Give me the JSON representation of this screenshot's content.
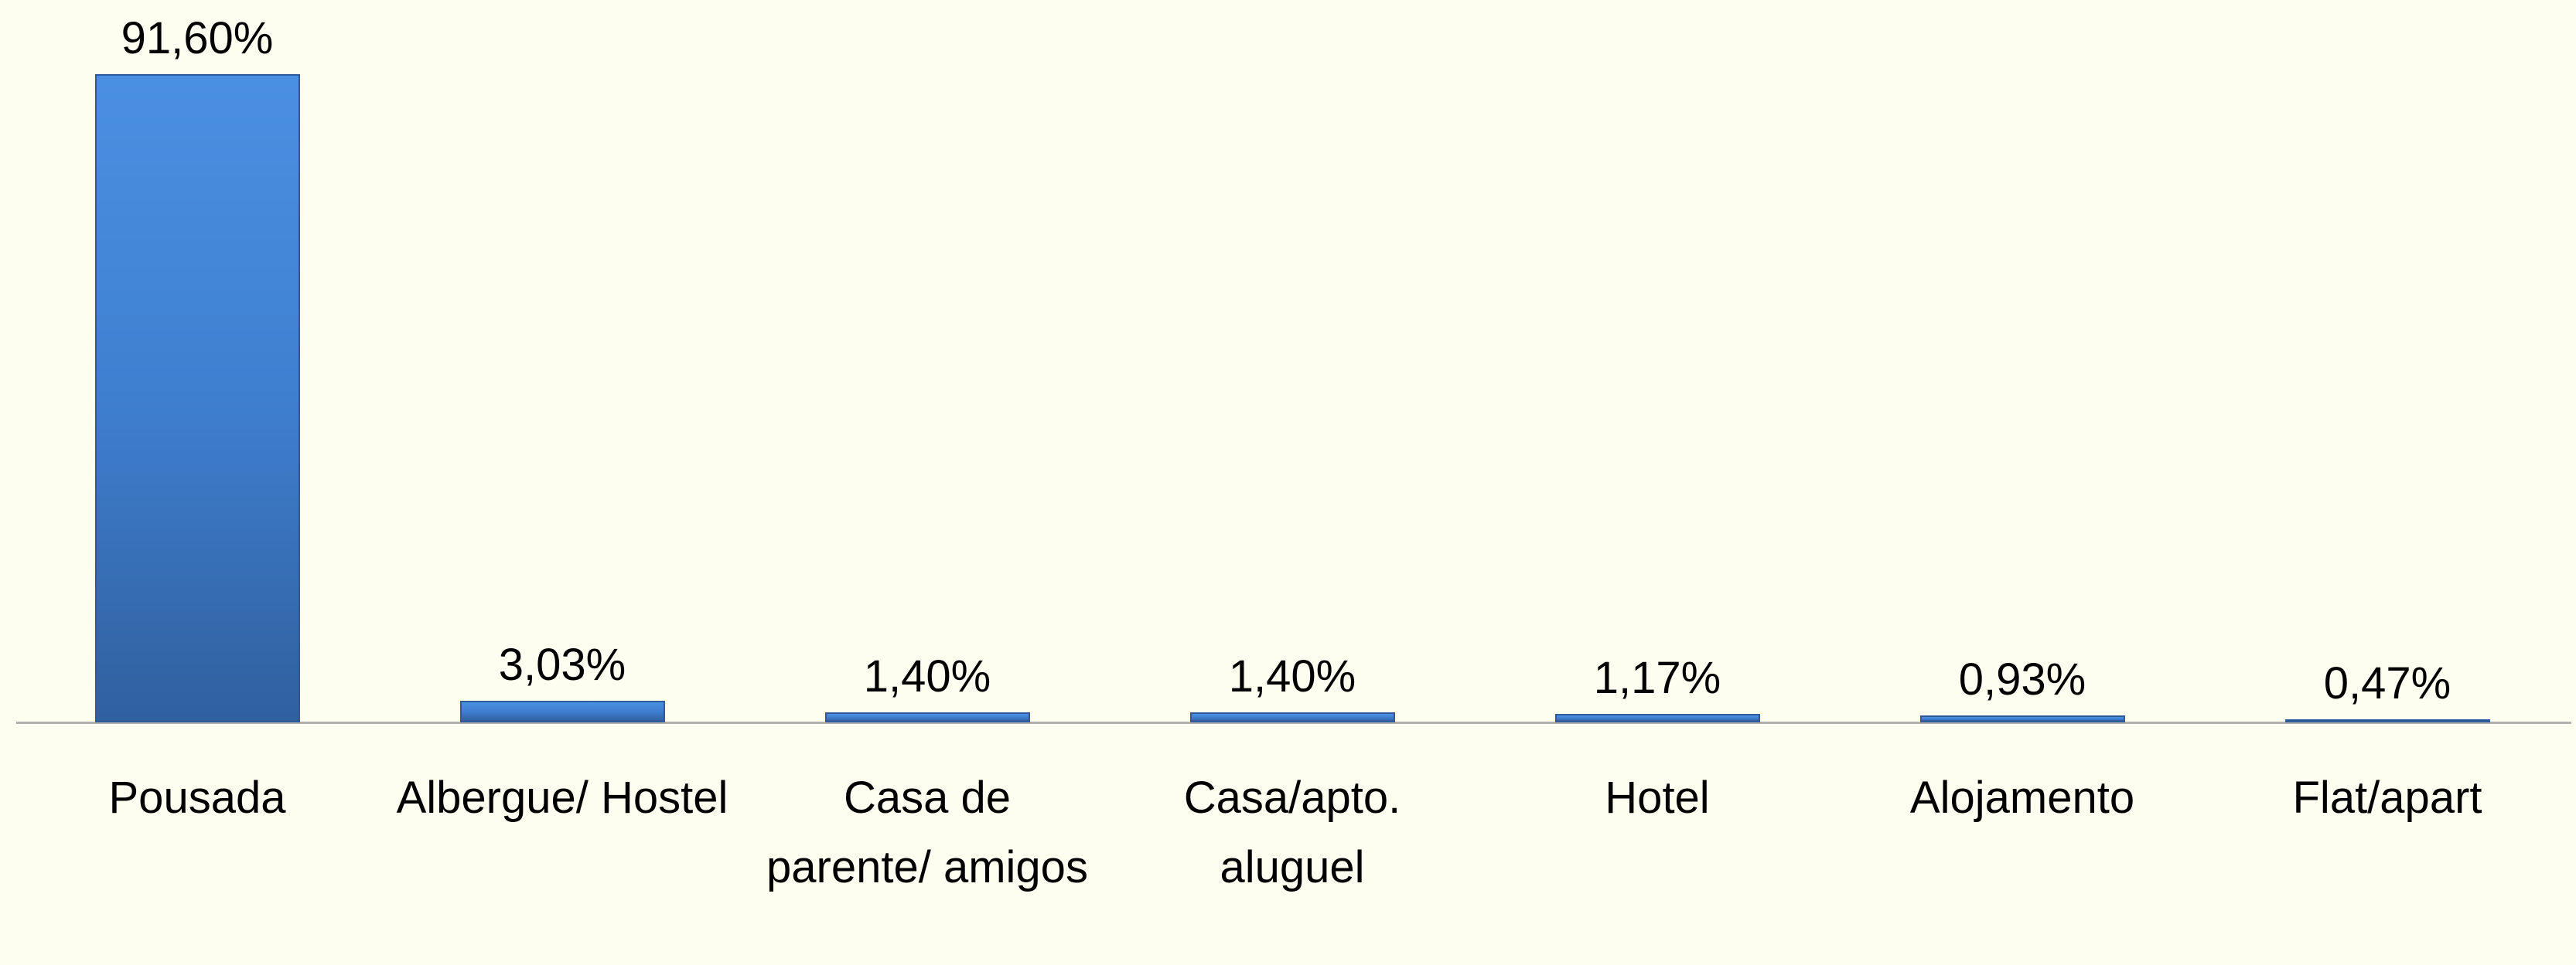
{
  "chart_data": {
    "type": "bar",
    "categories": [
      "Pousada",
      "Albergue/ Hostel",
      "Casa de parente/ amigos",
      "Casa/apto. aluguel",
      "Hotel",
      "Alojamento",
      "Flat/apart"
    ],
    "values": [
      91.6,
      3.03,
      1.4,
      1.4,
      1.17,
      0.93,
      0.47
    ],
    "value_labels": [
      "91,60%",
      "3,03%",
      "1,40%",
      "1,40%",
      "1,17%",
      "0,93%",
      "0,47%"
    ],
    "color": "#3f7fd0"
  }
}
